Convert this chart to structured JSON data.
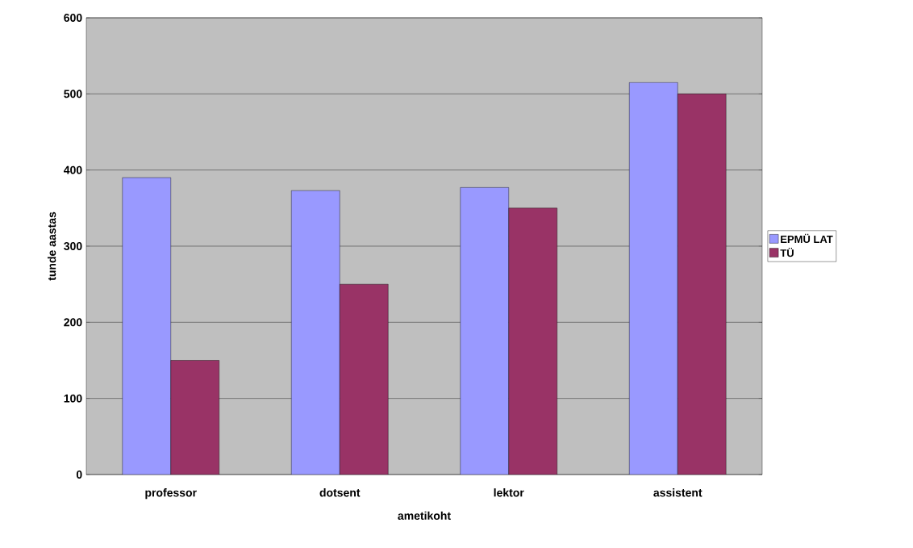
{
  "chart_data": {
    "type": "bar",
    "xlabel": "ametikoht",
    "ylabel": "tunde aastas",
    "categories": [
      "professor",
      "dotsent",
      "lektor",
      "assistent"
    ],
    "series": [
      {
        "name": "EPMÜ LAT",
        "color": "#9999ff",
        "values": [
          390,
          373,
          377,
          515
        ]
      },
      {
        "name": "TÜ",
        "color": "#993366",
        "values": [
          150,
          250,
          350,
          500
        ]
      }
    ],
    "ylim": [
      0,
      600
    ],
    "yticks": [
      0,
      100,
      200,
      300,
      400,
      500,
      600
    ],
    "grid": "y",
    "legend": "right"
  }
}
